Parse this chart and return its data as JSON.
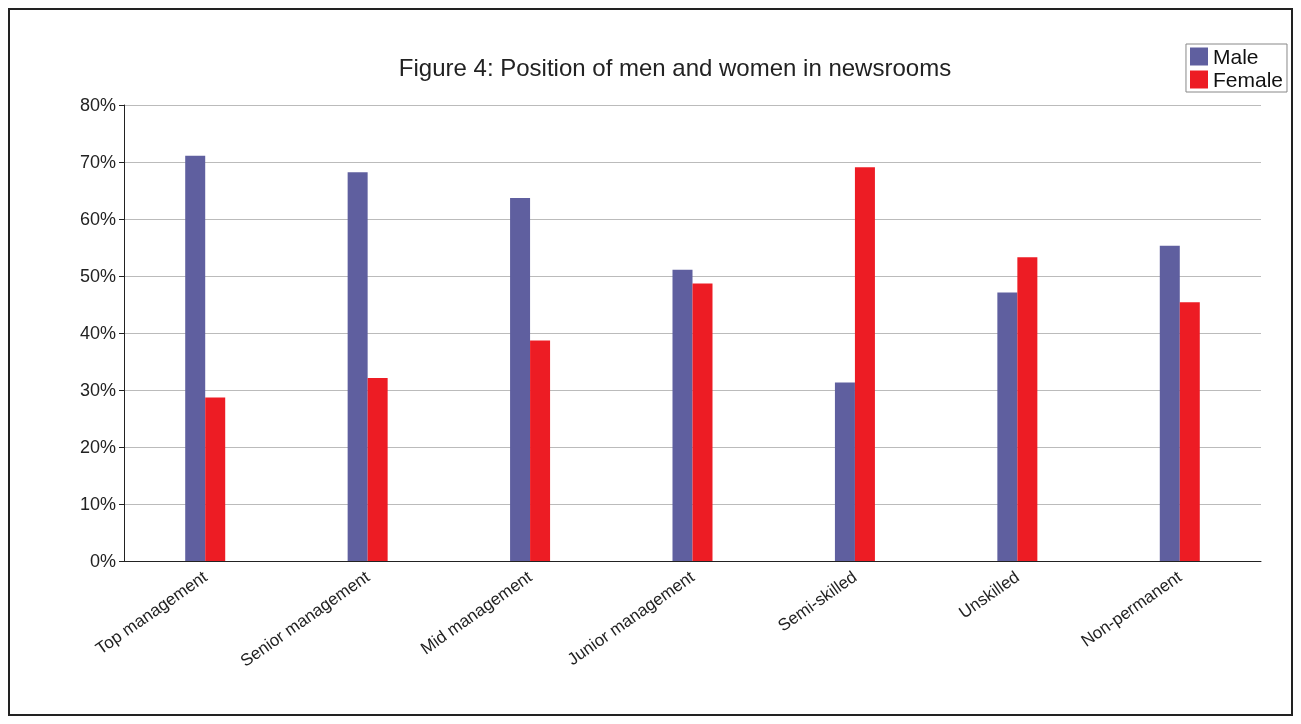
{
  "chart_data": {
    "type": "bar",
    "title": "Figure 4: Position of men and women in newsrooms",
    "categories": [
      "Top management",
      "Senior management",
      "Mid management",
      "Junior management",
      "Semi-skilled",
      "Unskilled",
      "Non-permanent"
    ],
    "series": [
      {
        "name": "Male",
        "color": "#5f5f9f",
        "values": [
          71.1,
          68.2,
          63.7,
          51.1,
          31.3,
          47.1,
          55.3
        ]
      },
      {
        "name": "Female",
        "color": "#ed1c24",
        "values": [
          28.7,
          32.1,
          38.7,
          48.7,
          69.1,
          53.3,
          45.4
        ]
      }
    ],
    "ylim": [
      0,
      80
    ],
    "yticks": [
      {
        "value": 0,
        "label": "0%"
      },
      {
        "value": 10,
        "label": "10%"
      },
      {
        "value": 20,
        "label": "20%"
      },
      {
        "value": 30,
        "label": "30%"
      },
      {
        "value": 40,
        "label": "40%"
      },
      {
        "value": 50,
        "label": "50%"
      },
      {
        "value": 60,
        "label": "60%"
      },
      {
        "value": 70,
        "label": "70%"
      },
      {
        "value": 80,
        "label": "80%"
      }
    ],
    "grid": "y",
    "legend": "top right"
  }
}
